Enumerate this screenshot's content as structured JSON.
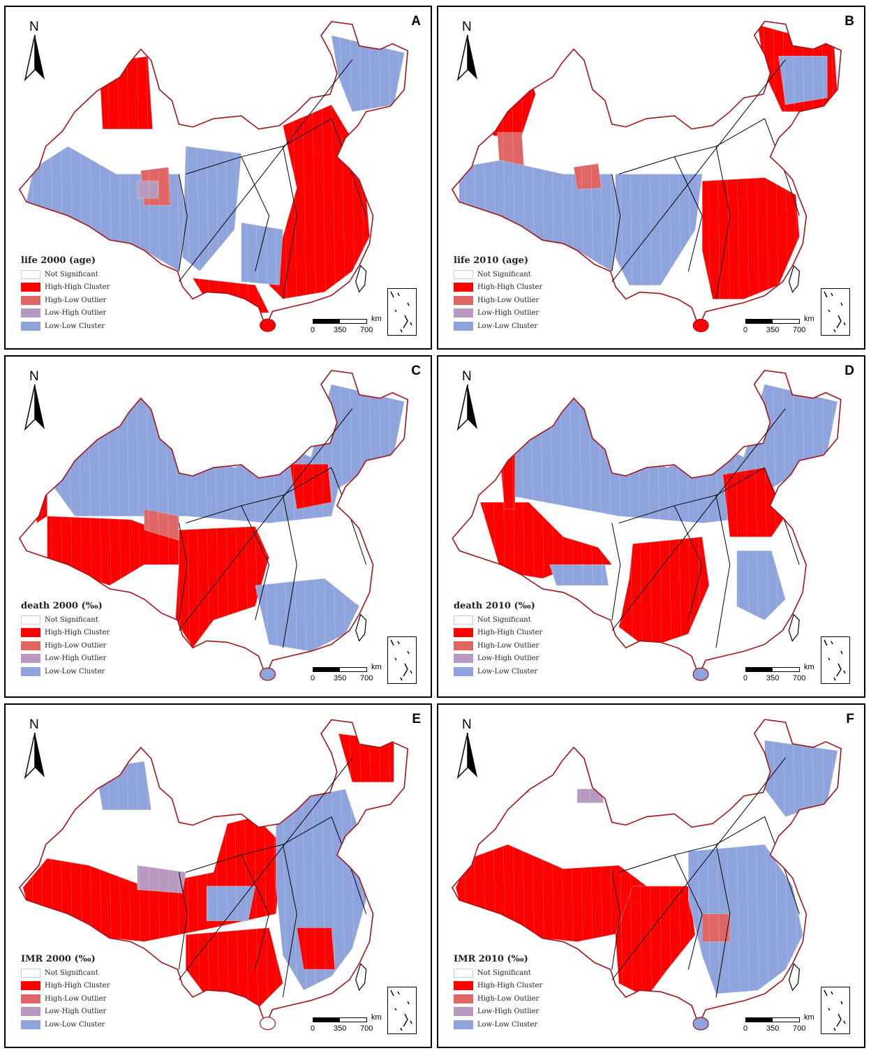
{
  "colors": {
    "high_high": "#ff0000",
    "high_low": "#e06666",
    "low_high": "#b89ac0",
    "low_low": "#8fa4dc",
    "not_significant": "#ffffff",
    "province_border": "#a0131a",
    "region_border": "#000000"
  },
  "north_label": "N",
  "scale": {
    "unit": "km",
    "ticks": [
      "0",
      "350",
      "700"
    ]
  },
  "legend_items": [
    "Not Significant",
    "High-High Cluster",
    "High-Low Outlier",
    "Low-High Outlier",
    "Low-Low Cluster"
  ],
  "panels": [
    {
      "letter": "A",
      "title": "life 2000 (age)"
    },
    {
      "letter": "B",
      "title": "life 2010 (age)"
    },
    {
      "letter": "C",
      "title": "death 2000 (‰)"
    },
    {
      "letter": "D",
      "title": "death 2010 (‰)"
    },
    {
      "letter": "E",
      "title": "IMR 2000 (‰)"
    },
    {
      "letter": "F",
      "title": "IMR 2010 (‰)"
    }
  ]
}
